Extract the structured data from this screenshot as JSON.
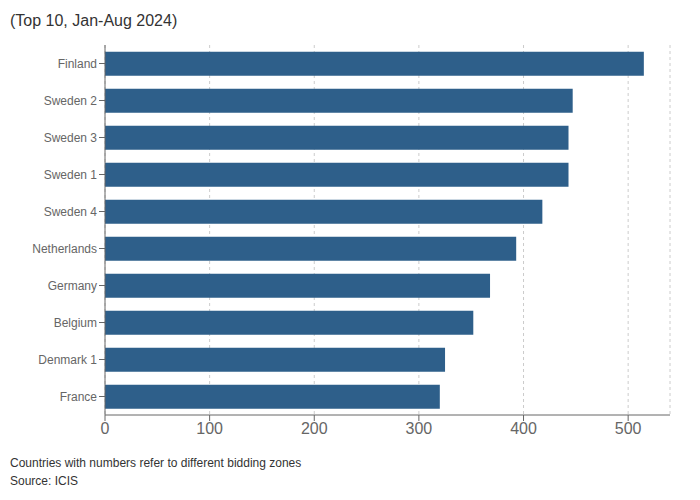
{
  "chart_data": {
    "type": "bar",
    "title": "(Top 10, Jan-Aug 2024)",
    "categories": [
      "France",
      "Denmark 1",
      "Belgium",
      "Germany",
      "Netherlands",
      "Sweden 4",
      "Sweden 1",
      "Sweden 3",
      "Sweden 2",
      "Finland"
    ],
    "values": [
      320,
      325,
      352,
      368,
      393,
      418,
      443,
      443,
      447,
      515
    ],
    "color": "#2e5f8a",
    "orientation": "horizontal",
    "xlim": [
      0,
      540
    ],
    "xticks": [
      0,
      100,
      200,
      300,
      400,
      500
    ],
    "grid": true,
    "annotations": [
      "Countries with numbers refer to different bidding zones",
      "Source: ICIS"
    ]
  }
}
